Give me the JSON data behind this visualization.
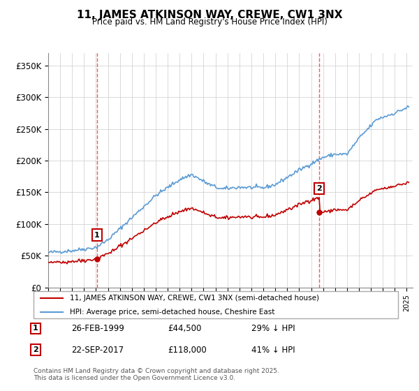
{
  "title": "11, JAMES ATKINSON WAY, CREWE, CW1 3NX",
  "subtitle": "Price paid vs. HM Land Registry's House Price Index (HPI)",
  "legend_line1": "11, JAMES ATKINSON WAY, CREWE, CW1 3NX (semi-detached house)",
  "legend_line2": "HPI: Average price, semi-detached house, Cheshire East",
  "footer": "Contains HM Land Registry data © Crown copyright and database right 2025.\nThis data is licensed under the Open Government Licence v3.0.",
  "purchase1_date": "26-FEB-1999",
  "purchase1_price": 44500,
  "purchase1_label": "29% ↓ HPI",
  "purchase1_num": "1",
  "purchase2_date": "22-SEP-2017",
  "purchase2_price": 118000,
  "purchase2_label": "41% ↓ HPI",
  "purchase2_num": "2",
  "ylim": [
    0,
    370000
  ],
  "yticks": [
    0,
    50000,
    100000,
    150000,
    200000,
    250000,
    300000,
    350000
  ],
  "ytick_labels": [
    "£0",
    "£50K",
    "£100K",
    "£150K",
    "£200K",
    "£250K",
    "£300K",
    "£350K"
  ],
  "hpi_color": "#5b9bd5",
  "price_color": "#c00000",
  "vline_color": "#ff4444",
  "background_color": "#ffffff",
  "grid_color": "#cccccc"
}
